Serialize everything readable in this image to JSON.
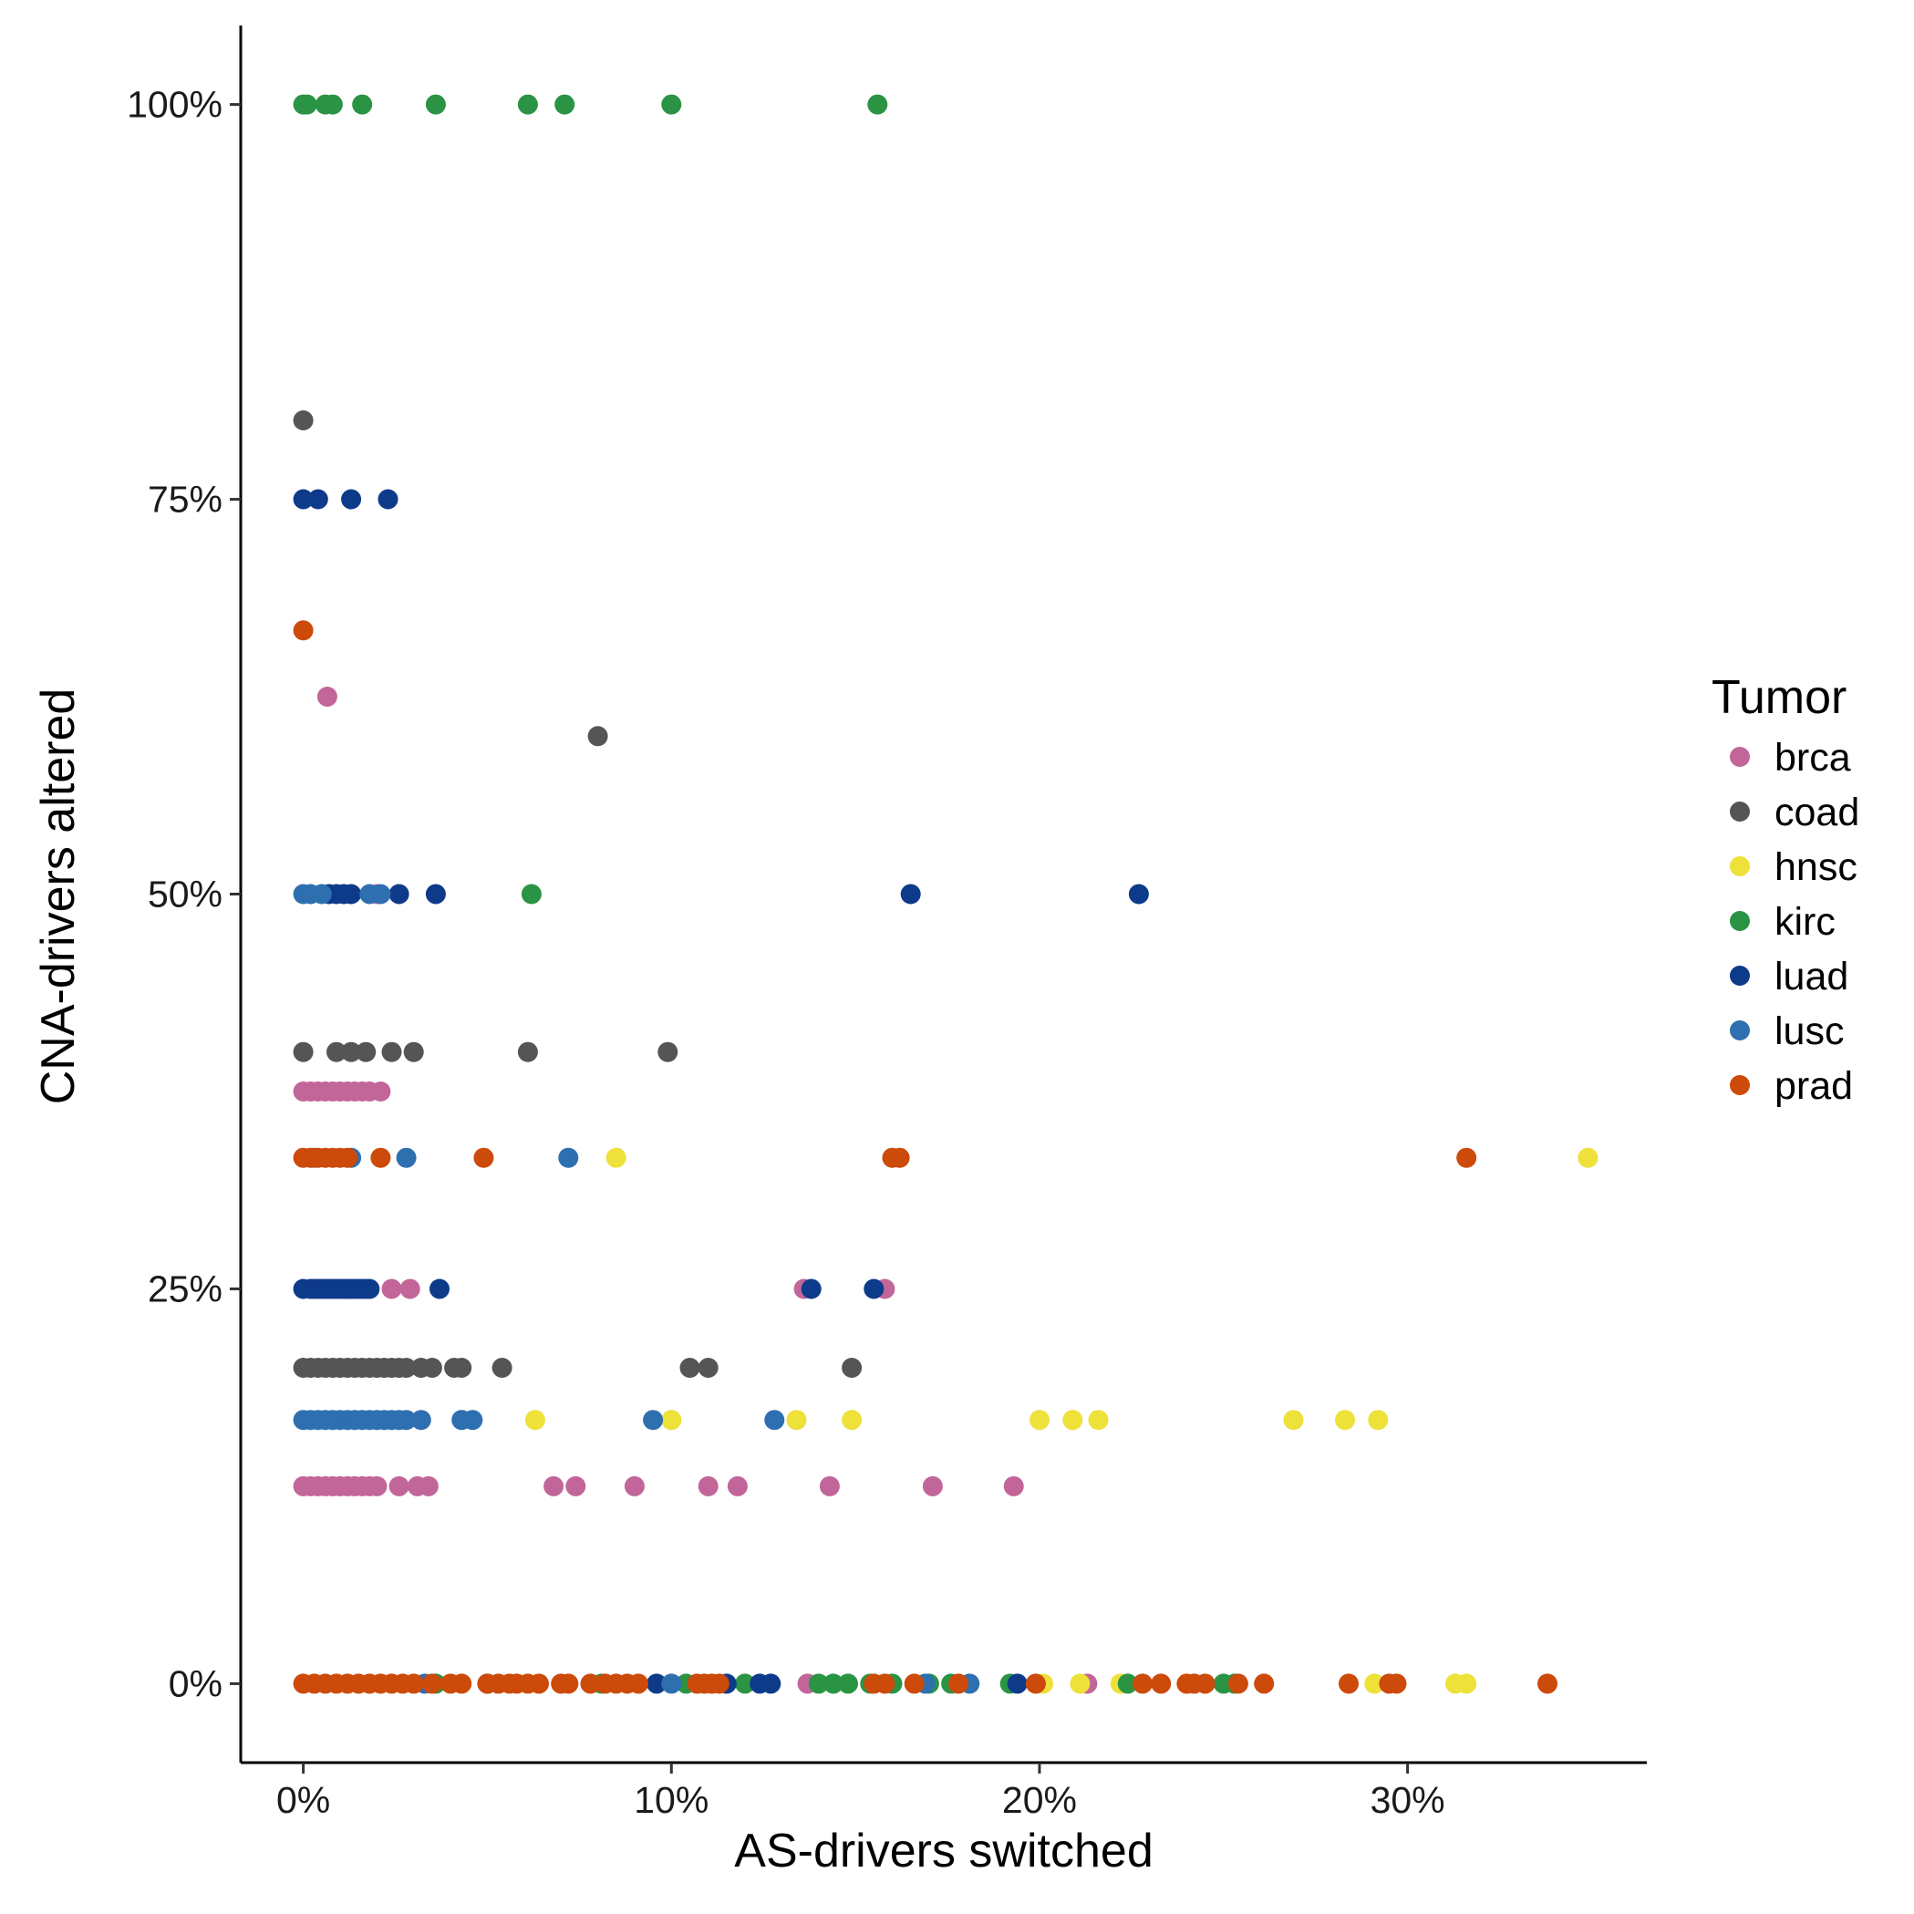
{
  "chart_data": {
    "type": "scatter",
    "xlabel": "AS-drivers switched",
    "ylabel": "CNA-drivers altered",
    "xlim": [
      -0.017,
      0.365
    ],
    "ylim": [
      -0.05,
      1.05
    ],
    "x_ticks": [
      0,
      0.1,
      0.2,
      0.3
    ],
    "x_tick_labels": [
      "0%",
      "10%",
      "20%",
      "30%"
    ],
    "y_ticks": [
      0,
      0.25,
      0.5,
      0.75,
      1.0
    ],
    "y_tick_labels": [
      "0%",
      "25%",
      "50%",
      "75%",
      "100%"
    ],
    "grid": false,
    "legend_position": "right",
    "legend_title": "Tumor",
    "colors": {
      "brca": "#c2669a",
      "coad": "#555555",
      "hnsc": "#ede13a",
      "kirc": "#2a9444",
      "luad": "#0e3a8a",
      "lusc": "#2e6fb0",
      "prad": "#cc4a0a"
    },
    "series": [
      {
        "name": "brca",
        "points": [
          [
            0.0,
            0.375
          ],
          [
            0.002,
            0.375
          ],
          [
            0.004,
            0.375
          ],
          [
            0.006,
            0.375
          ],
          [
            0.008,
            0.375
          ],
          [
            0.01,
            0.375
          ],
          [
            0.012,
            0.375
          ],
          [
            0.014,
            0.375
          ],
          [
            0.016,
            0.375
          ],
          [
            0.018,
            0.375
          ],
          [
            0.021,
            0.375
          ],
          [
            0.0,
            0.125
          ],
          [
            0.002,
            0.125
          ],
          [
            0.004,
            0.125
          ],
          [
            0.006,
            0.125
          ],
          [
            0.008,
            0.125
          ],
          [
            0.01,
            0.125
          ],
          [
            0.012,
            0.125
          ],
          [
            0.014,
            0.125
          ],
          [
            0.016,
            0.125
          ],
          [
            0.018,
            0.125
          ],
          [
            0.02,
            0.125
          ],
          [
            0.026,
            0.125
          ],
          [
            0.031,
            0.125
          ],
          [
            0.034,
            0.125
          ],
          [
            0.068,
            0.125
          ],
          [
            0.074,
            0.125
          ],
          [
            0.09,
            0.125
          ],
          [
            0.11,
            0.125
          ],
          [
            0.118,
            0.125
          ],
          [
            0.143,
            0.125
          ],
          [
            0.171,
            0.125
          ],
          [
            0.193,
            0.125
          ],
          [
            0.0065,
            0.625
          ],
          [
            0.024,
            0.25
          ],
          [
            0.029,
            0.25
          ],
          [
            0.136,
            0.25
          ],
          [
            0.158,
            0.25
          ],
          [
            0.02,
            0.5
          ],
          [
            0.137,
            0.0
          ],
          [
            0.213,
            0.0
          ]
        ]
      },
      {
        "name": "coad",
        "points": [
          [
            0.0,
            0.8
          ],
          [
            0.08,
            0.6
          ],
          [
            0.0,
            0.4
          ],
          [
            0.009,
            0.4
          ],
          [
            0.013,
            0.4
          ],
          [
            0.017,
            0.4
          ],
          [
            0.024,
            0.4
          ],
          [
            0.03,
            0.4
          ],
          [
            0.061,
            0.4
          ],
          [
            0.099,
            0.4
          ],
          [
            0.0,
            0.2
          ],
          [
            0.002,
            0.2
          ],
          [
            0.004,
            0.2
          ],
          [
            0.006,
            0.2
          ],
          [
            0.008,
            0.2
          ],
          [
            0.01,
            0.2
          ],
          [
            0.012,
            0.2
          ],
          [
            0.014,
            0.2
          ],
          [
            0.016,
            0.2
          ],
          [
            0.018,
            0.2
          ],
          [
            0.02,
            0.2
          ],
          [
            0.022,
            0.2
          ],
          [
            0.024,
            0.2
          ],
          [
            0.026,
            0.2
          ],
          [
            0.028,
            0.2
          ],
          [
            0.032,
            0.2
          ],
          [
            0.035,
            0.2
          ],
          [
            0.041,
            0.2
          ],
          [
            0.043,
            0.2
          ],
          [
            0.054,
            0.2
          ],
          [
            0.105,
            0.2
          ],
          [
            0.11,
            0.2
          ],
          [
            0.149,
            0.2
          ]
        ]
      },
      {
        "name": "hnsc",
        "points": [
          [
            0.085,
            0.333
          ],
          [
            0.349,
            0.333
          ],
          [
            0.063,
            0.167
          ],
          [
            0.1,
            0.167
          ],
          [
            0.134,
            0.167
          ],
          [
            0.149,
            0.167
          ],
          [
            0.2,
            0.167
          ],
          [
            0.209,
            0.167
          ],
          [
            0.216,
            0.167
          ],
          [
            0.269,
            0.167
          ],
          [
            0.283,
            0.167
          ],
          [
            0.292,
            0.167
          ],
          [
            0.201,
            0.0
          ],
          [
            0.211,
            0.0
          ],
          [
            0.222,
            0.0
          ],
          [
            0.24,
            0.0
          ],
          [
            0.291,
            0.0
          ],
          [
            0.313,
            0.0
          ],
          [
            0.316,
            0.0
          ]
        ]
      },
      {
        "name": "kirc",
        "points": [
          [
            0.0,
            1.0
          ],
          [
            0.001,
            1.0
          ],
          [
            0.006,
            1.0
          ],
          [
            0.008,
            1.0
          ],
          [
            0.016,
            1.0
          ],
          [
            0.036,
            1.0
          ],
          [
            0.061,
            1.0
          ],
          [
            0.071,
            1.0
          ],
          [
            0.1,
            1.0
          ],
          [
            0.156,
            1.0
          ],
          [
            0.062,
            0.5
          ],
          [
            0.036,
            0.0
          ],
          [
            0.081,
            0.0
          ],
          [
            0.104,
            0.0
          ],
          [
            0.12,
            0.0
          ],
          [
            0.14,
            0.0
          ],
          [
            0.144,
            0.0
          ],
          [
            0.148,
            0.0
          ],
          [
            0.154,
            0.0
          ],
          [
            0.16,
            0.0
          ],
          [
            0.17,
            0.0
          ],
          [
            0.176,
            0.0
          ],
          [
            0.192,
            0.0
          ],
          [
            0.224,
            0.0
          ],
          [
            0.25,
            0.0
          ],
          [
            0.253,
            0.0
          ]
        ]
      },
      {
        "name": "luad",
        "points": [
          [
            0.0,
            0.75
          ],
          [
            0.004,
            0.75
          ],
          [
            0.013,
            0.75
          ],
          [
            0.023,
            0.75
          ],
          [
            0.007,
            0.5
          ],
          [
            0.009,
            0.5
          ],
          [
            0.011,
            0.5
          ],
          [
            0.013,
            0.5
          ],
          [
            0.026,
            0.5
          ],
          [
            0.036,
            0.5
          ],
          [
            0.165,
            0.5
          ],
          [
            0.227,
            0.5
          ],
          [
            0.0,
            0.25
          ],
          [
            0.002,
            0.25
          ],
          [
            0.003,
            0.25
          ],
          [
            0.004,
            0.25
          ],
          [
            0.005,
            0.25
          ],
          [
            0.006,
            0.25
          ],
          [
            0.007,
            0.25
          ],
          [
            0.008,
            0.25
          ],
          [
            0.009,
            0.25
          ],
          [
            0.01,
            0.25
          ],
          [
            0.011,
            0.25
          ],
          [
            0.012,
            0.25
          ],
          [
            0.013,
            0.25
          ],
          [
            0.014,
            0.25
          ],
          [
            0.015,
            0.25
          ],
          [
            0.016,
            0.25
          ],
          [
            0.017,
            0.25
          ],
          [
            0.018,
            0.25
          ],
          [
            0.037,
            0.25
          ],
          [
            0.138,
            0.25
          ],
          [
            0.155,
            0.25
          ],
          [
            0.05,
            0.0
          ],
          [
            0.096,
            0.0
          ],
          [
            0.115,
            0.0
          ],
          [
            0.124,
            0.0
          ],
          [
            0.127,
            0.0
          ],
          [
            0.194,
            0.0
          ]
        ]
      },
      {
        "name": "lusc",
        "points": [
          [
            0.0,
            0.5
          ],
          [
            0.002,
            0.5
          ],
          [
            0.005,
            0.5
          ],
          [
            0.018,
            0.5
          ],
          [
            0.021,
            0.5
          ],
          [
            0.003,
            0.333
          ],
          [
            0.013,
            0.333
          ],
          [
            0.028,
            0.333
          ],
          [
            0.072,
            0.333
          ],
          [
            0.0,
            0.167
          ],
          [
            0.002,
            0.167
          ],
          [
            0.004,
            0.167
          ],
          [
            0.006,
            0.167
          ],
          [
            0.008,
            0.167
          ],
          [
            0.01,
            0.167
          ],
          [
            0.012,
            0.167
          ],
          [
            0.014,
            0.167
          ],
          [
            0.016,
            0.167
          ],
          [
            0.018,
            0.167
          ],
          [
            0.02,
            0.167
          ],
          [
            0.022,
            0.167
          ],
          [
            0.024,
            0.167
          ],
          [
            0.026,
            0.167
          ],
          [
            0.028,
            0.167
          ],
          [
            0.032,
            0.167
          ],
          [
            0.043,
            0.167
          ],
          [
            0.046,
            0.167
          ],
          [
            0.095,
            0.167
          ],
          [
            0.128,
            0.167
          ],
          [
            0.033,
            0.0
          ],
          [
            0.1,
            0.0
          ],
          [
            0.169,
            0.0
          ],
          [
            0.181,
            0.0
          ]
        ]
      },
      {
        "name": "prad",
        "points": [
          [
            0.0,
            0.667
          ],
          [
            0.0,
            0.333
          ],
          [
            0.002,
            0.333
          ],
          [
            0.004,
            0.333
          ],
          [
            0.006,
            0.333
          ],
          [
            0.008,
            0.333
          ],
          [
            0.01,
            0.333
          ],
          [
            0.012,
            0.333
          ],
          [
            0.021,
            0.333
          ],
          [
            0.049,
            0.333
          ],
          [
            0.16,
            0.333
          ],
          [
            0.162,
            0.333
          ],
          [
            0.316,
            0.333
          ],
          [
            0.0,
            0.0
          ],
          [
            0.003,
            0.0
          ],
          [
            0.006,
            0.0
          ],
          [
            0.009,
            0.0
          ],
          [
            0.012,
            0.0
          ],
          [
            0.015,
            0.0
          ],
          [
            0.018,
            0.0
          ],
          [
            0.021,
            0.0
          ],
          [
            0.024,
            0.0
          ],
          [
            0.027,
            0.0
          ],
          [
            0.03,
            0.0
          ],
          [
            0.035,
            0.0
          ],
          [
            0.04,
            0.0
          ],
          [
            0.043,
            0.0
          ],
          [
            0.05,
            0.0
          ],
          [
            0.053,
            0.0
          ],
          [
            0.056,
            0.0
          ],
          [
            0.058,
            0.0
          ],
          [
            0.061,
            0.0
          ],
          [
            0.064,
            0.0
          ],
          [
            0.07,
            0.0
          ],
          [
            0.072,
            0.0
          ],
          [
            0.078,
            0.0
          ],
          [
            0.082,
            0.0
          ],
          [
            0.085,
            0.0
          ],
          [
            0.088,
            0.0
          ],
          [
            0.091,
            0.0
          ],
          [
            0.107,
            0.0
          ],
          [
            0.109,
            0.0
          ],
          [
            0.111,
            0.0
          ],
          [
            0.113,
            0.0
          ],
          [
            0.155,
            0.0
          ],
          [
            0.158,
            0.0
          ],
          [
            0.166,
            0.0
          ],
          [
            0.178,
            0.0
          ],
          [
            0.199,
            0.0
          ],
          [
            0.228,
            0.0
          ],
          [
            0.233,
            0.0
          ],
          [
            0.24,
            0.0
          ],
          [
            0.242,
            0.0
          ],
          [
            0.245,
            0.0
          ],
          [
            0.254,
            0.0
          ],
          [
            0.261,
            0.0
          ],
          [
            0.284,
            0.0
          ],
          [
            0.295,
            0.0
          ],
          [
            0.297,
            0.0
          ],
          [
            0.338,
            0.0
          ]
        ]
      }
    ]
  }
}
